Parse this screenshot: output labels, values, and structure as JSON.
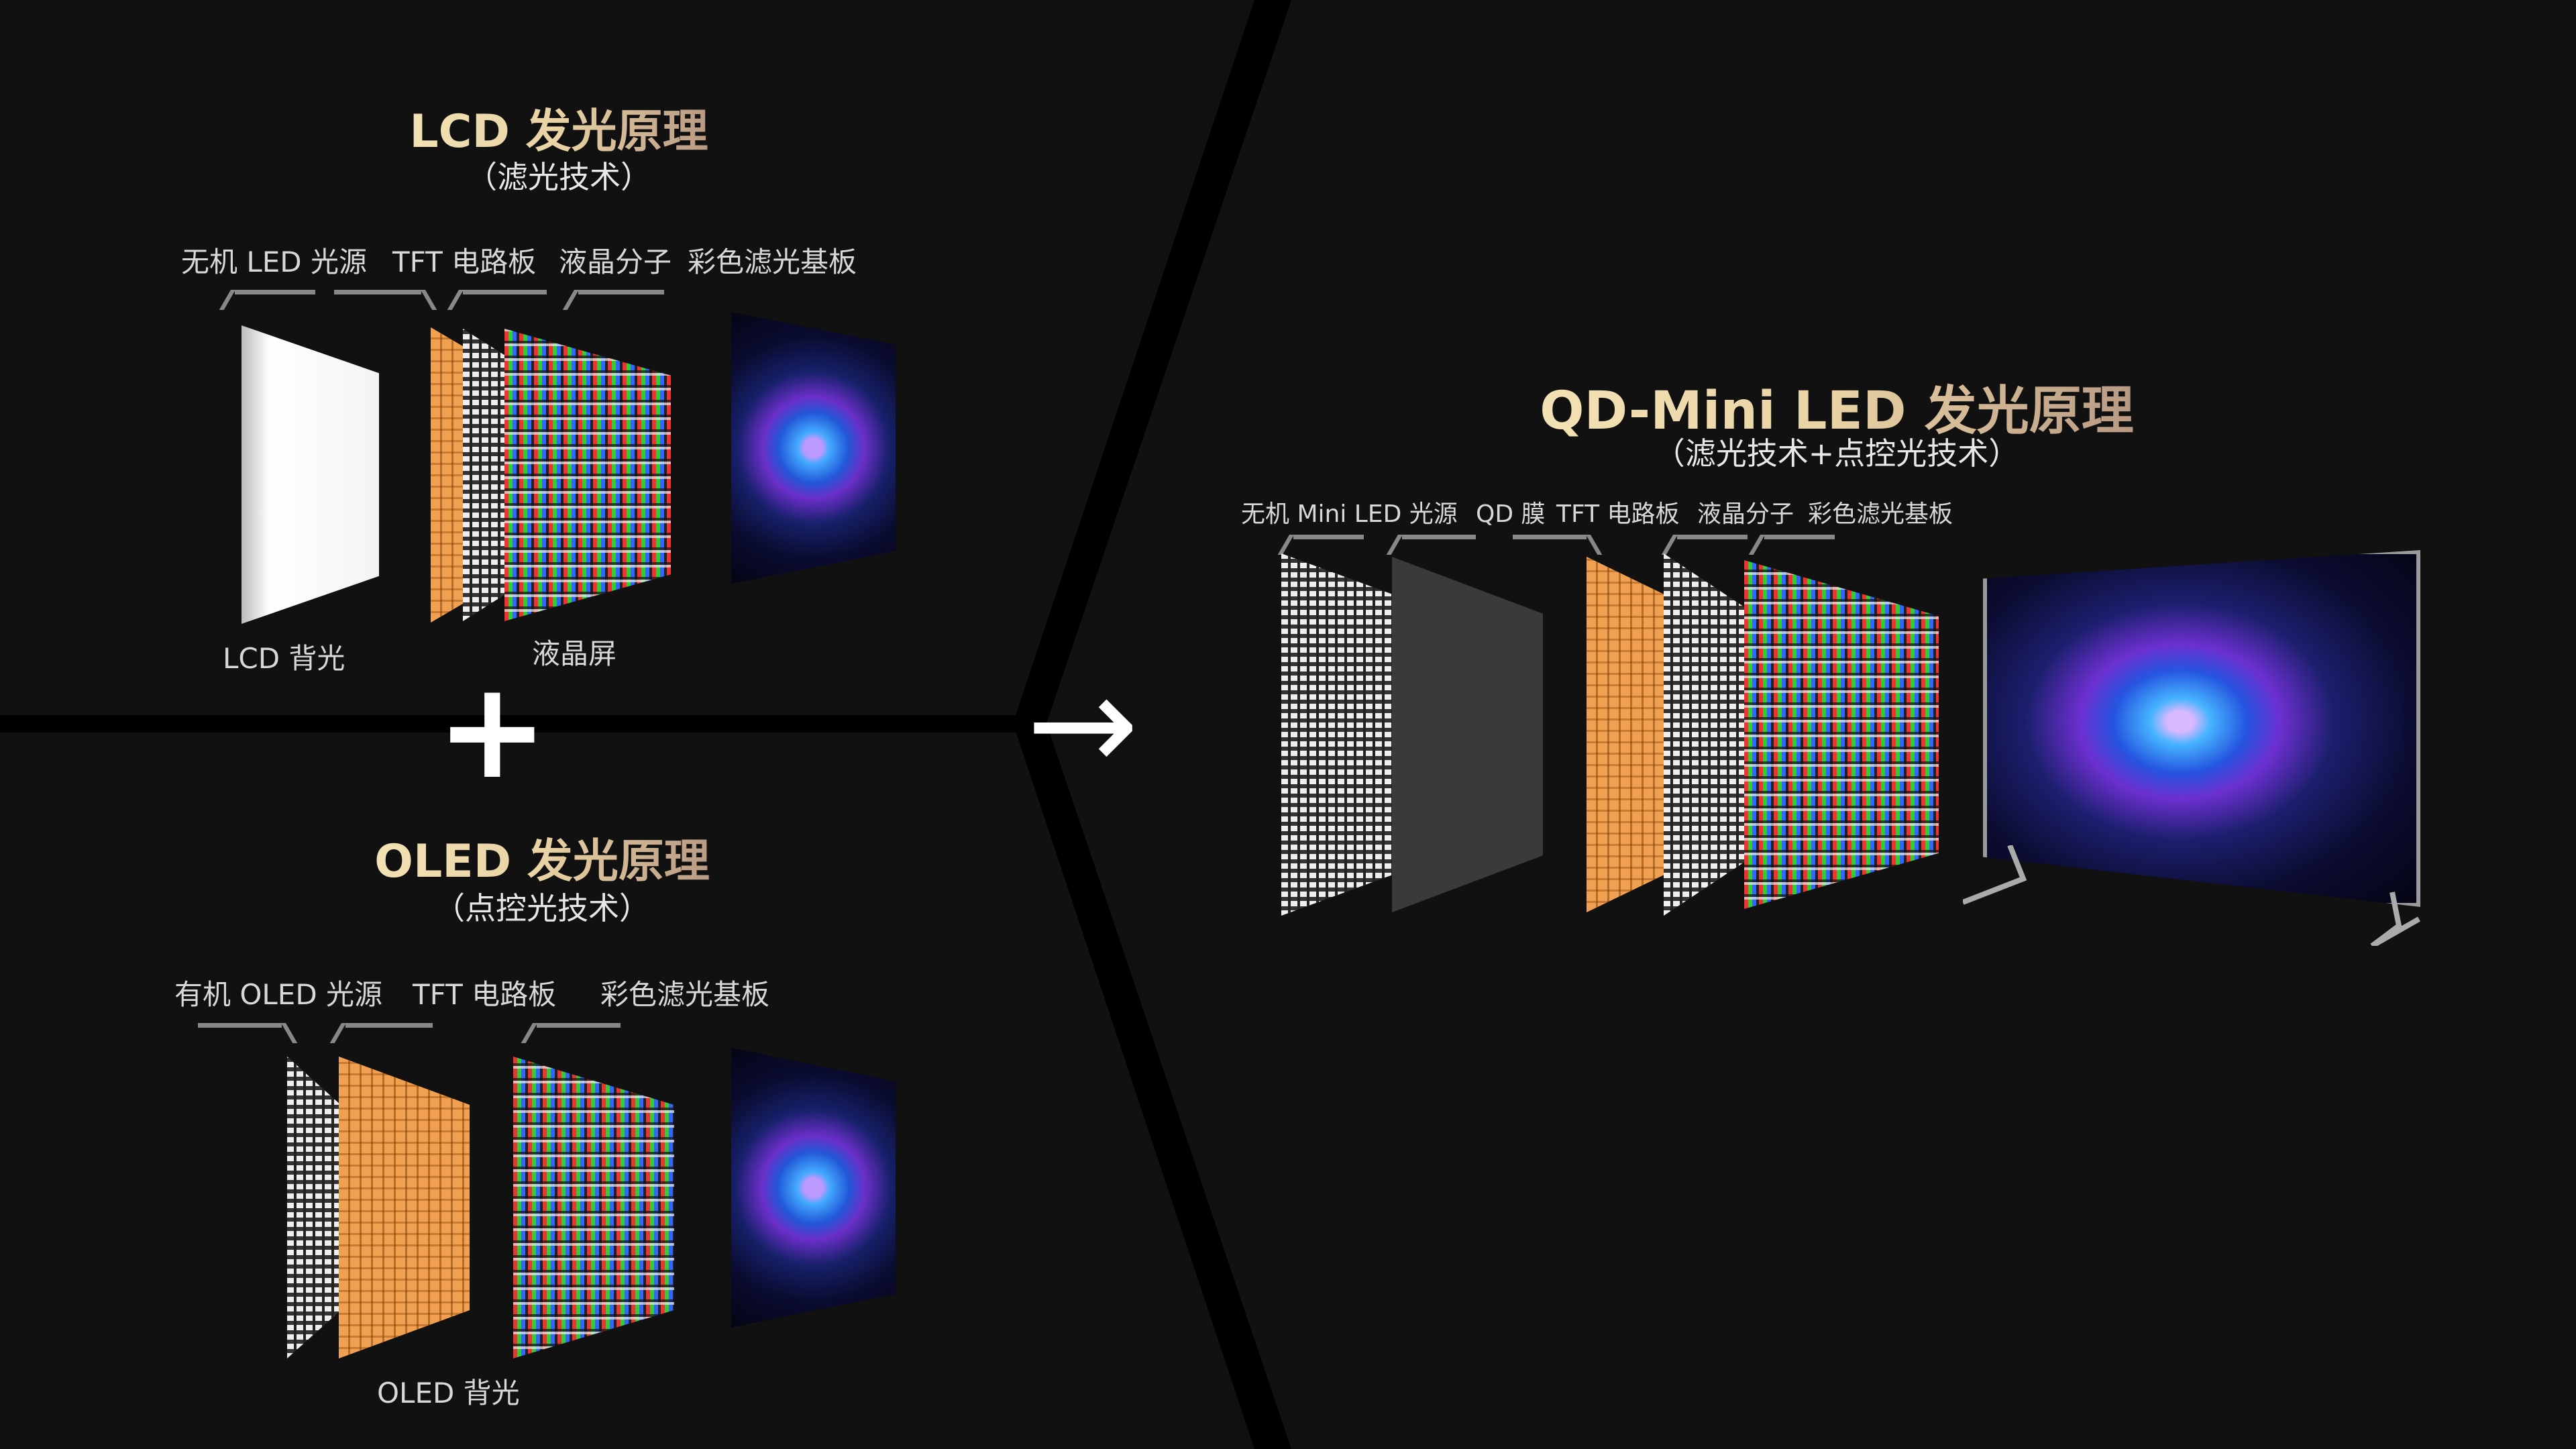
{
  "lcd": {
    "title": "LCD 发光原理",
    "subtitle": "（滤光技术）",
    "layer_labels": [
      "无机 LED 光源",
      "TFT 电路板",
      "液晶分子",
      "彩色滤光基板"
    ],
    "bottom_labels": [
      "LCD 背光",
      "液晶屏"
    ]
  },
  "oled": {
    "title": "OLED 发光原理",
    "subtitle": "（点控光技术）",
    "layer_labels": [
      "有机 OLED 光源",
      "TFT 电路板",
      "彩色滤光基板"
    ],
    "bottom_label": "OLED 背光"
  },
  "qd": {
    "title": "QD-Mini LED 发光原理",
    "subtitle": "（滤光技术+点控光技术）",
    "layer_labels": [
      "无机 Mini LED 光源",
      "QD 膜",
      "TFT 电路板",
      "液晶分子",
      "彩色滤光基板"
    ]
  },
  "symbols": {
    "plus": "+",
    "arrow": "→"
  },
  "colors": {
    "background": "#111111",
    "title_gold": "#e9d2a4",
    "divider": "#000000"
  }
}
